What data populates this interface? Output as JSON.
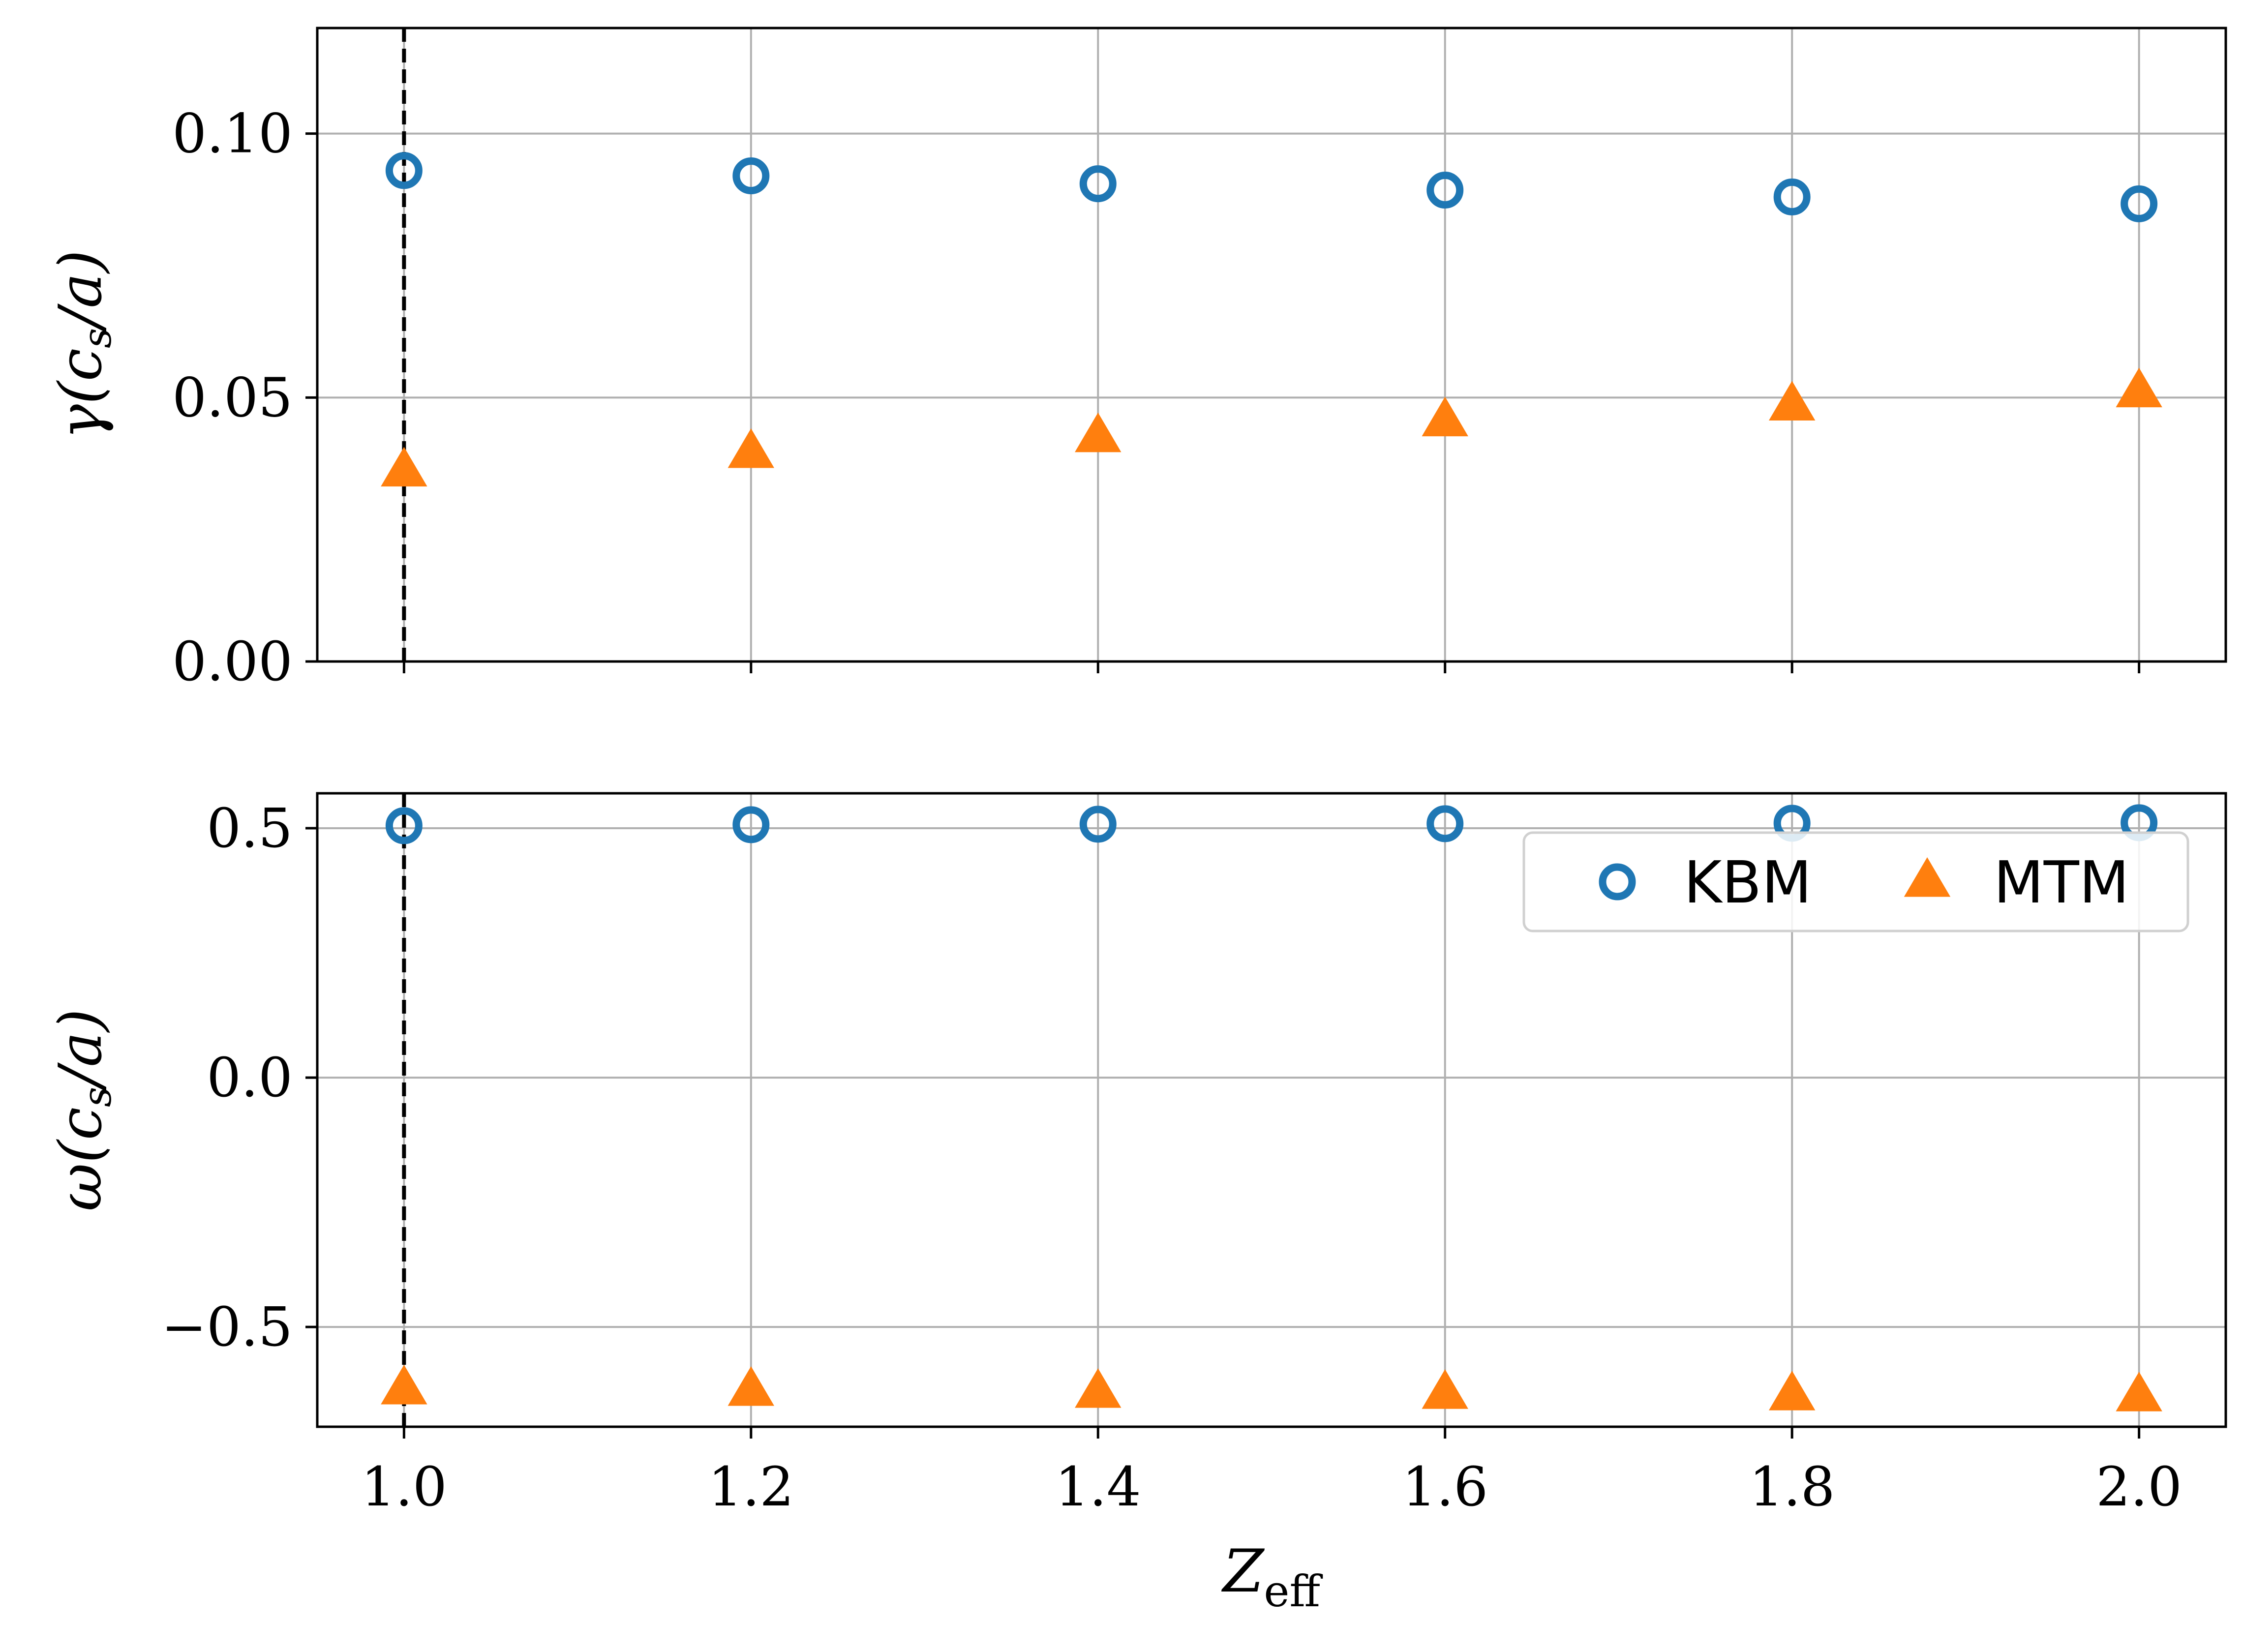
{
  "chart_data": [
    {
      "type": "scatter",
      "x": [
        1.0,
        1.2,
        1.4,
        1.6,
        1.8,
        2.0
      ],
      "xlim": [
        0.95,
        2.05
      ],
      "ylim": [
        0.0,
        0.12
      ],
      "yticks": [
        0.0,
        0.05,
        0.1
      ],
      "ytick_labels": [
        "0.00",
        "0.05",
        "0.10"
      ],
      "ylabel": "γ(c_s/a)",
      "ylabel_main": "γ(c",
      "ylabel_sub": "s",
      "ylabel_tail": "/a)",
      "grid": true,
      "vline_x": 1.0,
      "series": [
        {
          "name": "KBM",
          "marker": "open-circle",
          "color": "#1f77b4",
          "values": [
            0.093,
            0.092,
            0.0905,
            0.0893,
            0.088,
            0.0867
          ]
        },
        {
          "name": "MTM",
          "marker": "triangle",
          "color": "#ff7f0e",
          "values": [
            0.036,
            0.0395,
            0.0425,
            0.0455,
            0.0485,
            0.051
          ]
        }
      ]
    },
    {
      "type": "scatter",
      "x": [
        1.0,
        1.2,
        1.4,
        1.6,
        1.8,
        2.0
      ],
      "xlim": [
        0.95,
        2.05
      ],
      "ylim": [
        -0.7,
        0.57
      ],
      "yticks": [
        -0.5,
        0.0,
        0.5
      ],
      "ytick_labels": [
        "−0.5",
        "0.0",
        "0.5"
      ],
      "xticks": [
        1.0,
        1.2,
        1.4,
        1.6,
        1.8,
        2.0
      ],
      "xtick_labels": [
        "1.0",
        "1.2",
        "1.4",
        "1.6",
        "1.8",
        "2.0"
      ],
      "ylabel": "ω(c_s/a)",
      "ylabel_main": "ω(c",
      "ylabel_sub": "s",
      "ylabel_tail": "/a)",
      "xlabel": "Z_eff",
      "xlabel_main": "Z",
      "xlabel_sub": "eff",
      "grid": true,
      "vline_x": 1.0,
      "legend_placement": "upper-right",
      "series": [
        {
          "name": "KBM",
          "marker": "open-circle",
          "color": "#1f77b4",
          "values": [
            0.505,
            0.507,
            0.508,
            0.509,
            0.51,
            0.511
          ]
        },
        {
          "name": "MTM",
          "marker": "triangle",
          "color": "#ff7f0e",
          "values": [
            -0.625,
            -0.628,
            -0.632,
            -0.634,
            -0.637,
            -0.639
          ]
        }
      ]
    }
  ],
  "colors": {
    "grid": "#b0b0b0",
    "axis": "#000000",
    "vline": "#000000"
  }
}
